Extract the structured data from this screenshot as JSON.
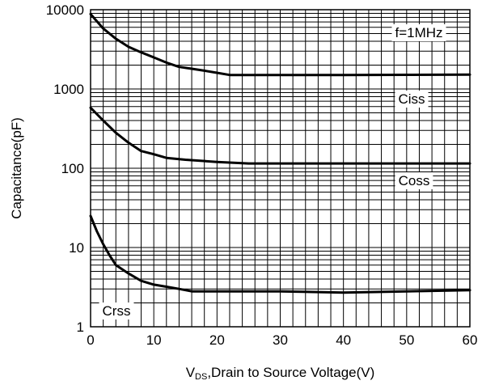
{
  "chart_data": {
    "type": "line",
    "title": "",
    "xlabel_prefix": "V",
    "xlabel_sub": "DS",
    "xlabel_rest": ",Drain to Source Voltage(V)",
    "ylabel": "Capacitance(pF)",
    "xlim": [
      0,
      60
    ],
    "ylim": [
      1,
      10000
    ],
    "yscale": "log",
    "grid": true,
    "xticks": [
      0,
      10,
      20,
      30,
      40,
      50,
      60
    ],
    "xtick_labels": [
      "0",
      "10",
      "20",
      "30",
      "40",
      "50",
      "60"
    ],
    "yticks": [
      1,
      10,
      100,
      1000,
      10000
    ],
    "ytick_labels": [
      "1",
      "10",
      "100",
      "1000",
      "10000"
    ],
    "annotation": "f=1MHz",
    "series": [
      {
        "name": "Ciss",
        "x": [
          0,
          2,
          4,
          6,
          8,
          10,
          12,
          14,
          16,
          18,
          20,
          22,
          25,
          30,
          40,
          50,
          60
        ],
        "y": [
          8800,
          5800,
          4300,
          3400,
          2900,
          2500,
          2150,
          1900,
          1800,
          1700,
          1600,
          1500,
          1500,
          1500,
          1500,
          1510,
          1520
        ]
      },
      {
        "name": "Coss",
        "x": [
          0,
          2,
          4,
          6,
          8,
          10,
          12,
          15,
          20,
          25,
          30,
          40,
          50,
          60
        ],
        "y": [
          580,
          400,
          280,
          210,
          165,
          150,
          135,
          128,
          120,
          115,
          115,
          115,
          115,
          115
        ]
      },
      {
        "name": "Crss",
        "x": [
          0,
          1,
          2,
          3,
          4,
          6,
          8,
          10,
          12,
          14,
          16,
          20,
          30,
          40,
          50,
          60
        ],
        "y": [
          25,
          16,
          11,
          8,
          6,
          4.7,
          3.8,
          3.4,
          3.2,
          3.0,
          2.8,
          2.8,
          2.8,
          2.7,
          2.8,
          2.9
        ]
      }
    ]
  }
}
